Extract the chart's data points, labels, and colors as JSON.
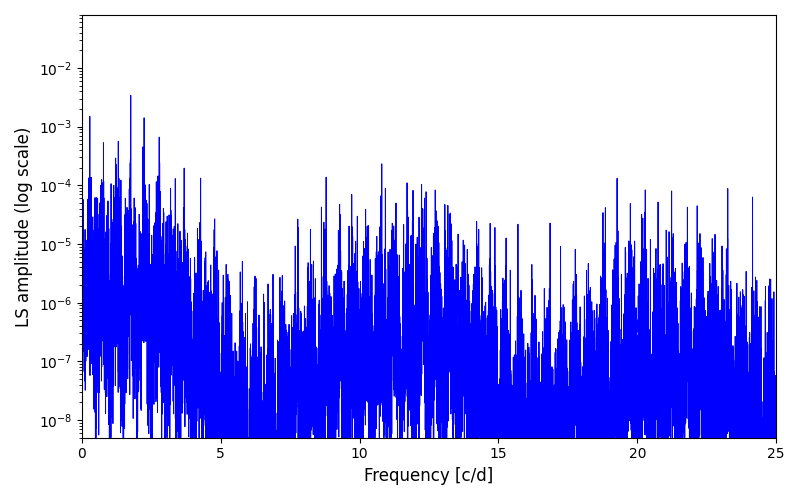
{
  "xlabel": "Frequency [c/d]",
  "ylabel": "LS amplitude (log scale)",
  "title": "",
  "line_color": "#0000ff",
  "line_width": 0.7,
  "xmin": 0,
  "xmax": 25,
  "ymin": 5e-09,
  "ymax": 0.08,
  "figsize": [
    8.0,
    5.0
  ],
  "dpi": 100,
  "xticks": [
    0,
    5,
    10,
    15,
    20,
    25
  ]
}
